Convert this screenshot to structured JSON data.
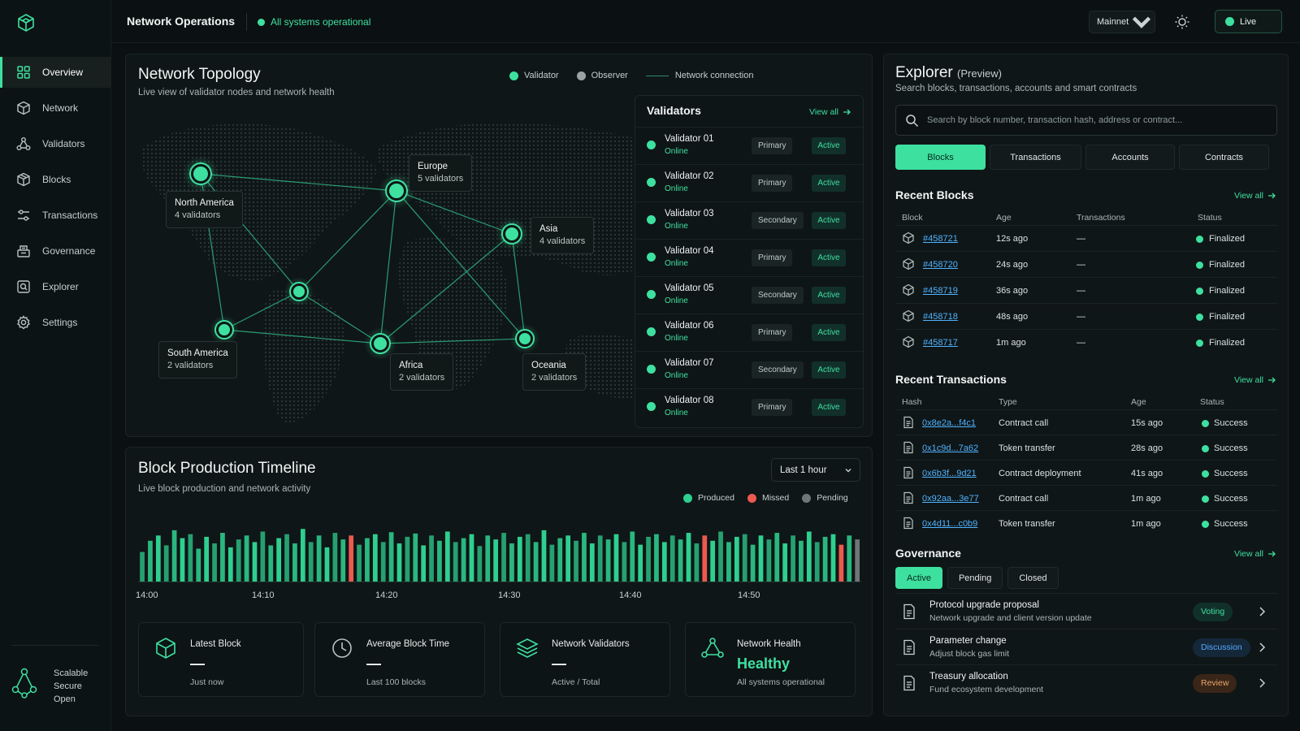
{
  "topbar": {
    "title": "Network Operations",
    "status": "All systems operational",
    "network": "Mainnet",
    "live": "Live"
  },
  "sidebar": {
    "items": [
      {
        "label": "Overview",
        "icon": "grid-icon",
        "active": true
      },
      {
        "label": "Network",
        "icon": "cube-icon"
      },
      {
        "label": "Validators",
        "icon": "nodes-icon"
      },
      {
        "label": "Blocks",
        "icon": "box-icon"
      },
      {
        "label": "Transactions",
        "icon": "sliders-icon"
      },
      {
        "label": "Governance",
        "icon": "ballot-icon"
      },
      {
        "label": "Explorer",
        "icon": "search-doc-icon"
      },
      {
        "label": "Settings",
        "icon": "gear-icon"
      }
    ],
    "footer": [
      "Scalable",
      "Secure",
      "Open"
    ]
  },
  "topology": {
    "title": "Network Topology",
    "subtitle": "Live view of validator nodes and network health",
    "legend": {
      "validator": "Validator",
      "observer": "Observer",
      "connection": "Network connection"
    },
    "regions": [
      {
        "name": "North America",
        "count": "4 validators"
      },
      {
        "name": "Europe",
        "count": "5 validators"
      },
      {
        "name": "Asia",
        "count": "4 validators"
      },
      {
        "name": "South America",
        "count": "2 validators"
      },
      {
        "name": "Africa",
        "count": "2 validators"
      },
      {
        "name": "Oceania",
        "count": "2 validators"
      }
    ]
  },
  "validators": {
    "title": "Validators",
    "view_all": "View all",
    "rows": [
      {
        "name": "Validator 01",
        "status": "Online",
        "role": "Primary",
        "state": "Active"
      },
      {
        "name": "Validator 02",
        "status": "Online",
        "role": "Primary",
        "state": "Active"
      },
      {
        "name": "Validator 03",
        "status": "Online",
        "role": "Secondary",
        "state": "Active"
      },
      {
        "name": "Validator 04",
        "status": "Online",
        "role": "Primary",
        "state": "Active"
      },
      {
        "name": "Validator 05",
        "status": "Online",
        "role": "Secondary",
        "state": "Active"
      },
      {
        "name": "Validator 06",
        "status": "Online",
        "role": "Primary",
        "state": "Active"
      },
      {
        "name": "Validator 07",
        "status": "Online",
        "role": "Secondary",
        "state": "Active"
      },
      {
        "name": "Validator 08",
        "status": "Online",
        "role": "Primary",
        "state": "Active"
      }
    ]
  },
  "timeline": {
    "title": "Block Production Timeline",
    "subtitle": "Live block production and network activity",
    "range": "Last 1 hour",
    "legend": {
      "produced": "Produced",
      "missed": "Missed",
      "pending": "Pending"
    },
    "xticks": [
      "14:00",
      "14:10",
      "14:20",
      "14:30",
      "14:40",
      "14:50"
    ]
  },
  "chart_data": {
    "type": "bar",
    "series_colors": {
      "produced": "#2fcf8f",
      "missed": "#ec5a4f",
      "pending": "#6d7776"
    },
    "values": [
      0.45,
      0.62,
      0.7,
      0.55,
      0.78,
      0.66,
      0.72,
      0.5,
      0.68,
      0.58,
      0.74,
      0.52,
      0.64,
      0.7,
      0.6,
      0.76,
      0.55,
      0.66,
      0.72,
      0.58,
      0.8,
      0.6,
      0.7,
      0.52,
      0.74,
      0.64,
      0.7,
      0.56,
      0.66,
      0.72,
      0.6,
      0.75,
      0.58,
      0.68,
      0.73,
      0.55,
      0.7,
      0.62,
      0.76,
      0.6,
      0.66,
      0.72,
      0.54,
      0.7,
      0.64,
      0.74,
      0.58,
      0.68,
      0.72,
      0.6,
      0.78,
      0.56,
      0.66,
      0.7,
      0.62,
      0.74,
      0.58,
      0.7,
      0.64,
      0.72,
      0.6,
      0.76,
      0.56,
      0.68,
      0.72,
      0.6,
      0.7,
      0.64,
      0.74,
      0.58,
      0.7,
      0.62,
      0.76,
      0.6,
      0.68,
      0.72,
      0.56,
      0.7,
      0.64,
      0.74,
      0.58,
      0.7,
      0.62,
      0.76,
      0.6,
      0.68,
      0.72,
      0.56,
      0.7,
      0.64
    ],
    "status": [
      "p",
      "p",
      "p",
      "p",
      "p",
      "p",
      "p",
      "p",
      "p",
      "p",
      "p",
      "p",
      "p",
      "p",
      "p",
      "p",
      "p",
      "p",
      "p",
      "p",
      "p",
      "p",
      "p",
      "p",
      "p",
      "p",
      "m",
      "p",
      "p",
      "p",
      "p",
      "p",
      "p",
      "p",
      "p",
      "p",
      "p",
      "p",
      "p",
      "p",
      "p",
      "p",
      "p",
      "p",
      "p",
      "p",
      "p",
      "p",
      "p",
      "p",
      "p",
      "p",
      "p",
      "p",
      "p",
      "p",
      "p",
      "p",
      "p",
      "p",
      "p",
      "p",
      "p",
      "p",
      "p",
      "p",
      "p",
      "p",
      "p",
      "p",
      "m",
      "p",
      "p",
      "p",
      "p",
      "p",
      "p",
      "p",
      "p",
      "p",
      "p",
      "p",
      "p",
      "p",
      "p",
      "p",
      "p",
      "m",
      "p",
      "n"
    ]
  },
  "stats": [
    {
      "label": "Latest Block",
      "value": "—",
      "sub": "Just now",
      "icon": "cube-icon"
    },
    {
      "label": "Average Block Time",
      "value": "—",
      "sub": "Last 100 blocks",
      "icon": "clock-icon"
    },
    {
      "label": "Network Validators",
      "value": "—",
      "sub": "Active / Total",
      "icon": "layers-icon"
    },
    {
      "label": "Network Health",
      "value": "Healthy",
      "sub": "All systems operational",
      "icon": "network-icon"
    }
  ],
  "explorer": {
    "title": "Explorer",
    "title_tag": "(Preview)",
    "subtitle": "Search blocks, transactions, accounts and smart contracts",
    "search_placeholder": "Search by block number, transaction hash, address or contract...",
    "tabs": [
      "Blocks",
      "Transactions",
      "Accounts",
      "Contracts"
    ],
    "recent_blocks": {
      "title": "Recent Blocks",
      "view_all": "View all",
      "headers": [
        "Block",
        "Age",
        "Transactions",
        "Status"
      ],
      "rows": [
        {
          "block": "#458721",
          "age": "12s ago",
          "tx": "—",
          "status": "Finalized"
        },
        {
          "block": "#458720",
          "age": "24s ago",
          "tx": "—",
          "status": "Finalized"
        },
        {
          "block": "#458719",
          "age": "36s ago",
          "tx": "—",
          "status": "Finalized"
        },
        {
          "block": "#458718",
          "age": "48s ago",
          "tx": "—",
          "status": "Finalized"
        },
        {
          "block": "#458717",
          "age": "1m ago",
          "tx": "—",
          "status": "Finalized"
        }
      ]
    },
    "recent_tx": {
      "title": "Recent Transactions",
      "view_all": "View all",
      "headers": [
        "Hash",
        "Type",
        "Age",
        "Status"
      ],
      "rows": [
        {
          "hash": "0x8e2a...f4c1",
          "type": "Contract call",
          "age": "15s ago",
          "status": "Success"
        },
        {
          "hash": "0x1c9d...7a62",
          "type": "Token transfer",
          "age": "28s ago",
          "status": "Success"
        },
        {
          "hash": "0x6b3f...9d21",
          "type": "Contract deployment",
          "age": "41s ago",
          "status": "Success"
        },
        {
          "hash": "0x92aa...3e77",
          "type": "Contract call",
          "age": "1m ago",
          "status": "Success"
        },
        {
          "hash": "0x4d11...c0b9",
          "type": "Token transfer",
          "age": "1m ago",
          "status": "Success"
        }
      ]
    },
    "governance": {
      "title": "Governance",
      "view_all": "View all",
      "tabs": [
        "Active",
        "Pending",
        "Closed"
      ],
      "rows": [
        {
          "title": "Protocol upgrade proposal",
          "desc": "Network upgrade and client version update",
          "badge": "Voting",
          "color": "#3ee0a0",
          "bg": "#12302a"
        },
        {
          "title": "Parameter change",
          "desc": "Adjust block gas limit",
          "badge": "Discussion",
          "color": "#55a9ff",
          "bg": "#15283a"
        },
        {
          "title": "Treasury allocation",
          "desc": "Fund ecosystem development",
          "badge": "Review",
          "color": "#e8a56a",
          "bg": "#3a2618"
        }
      ]
    }
  }
}
